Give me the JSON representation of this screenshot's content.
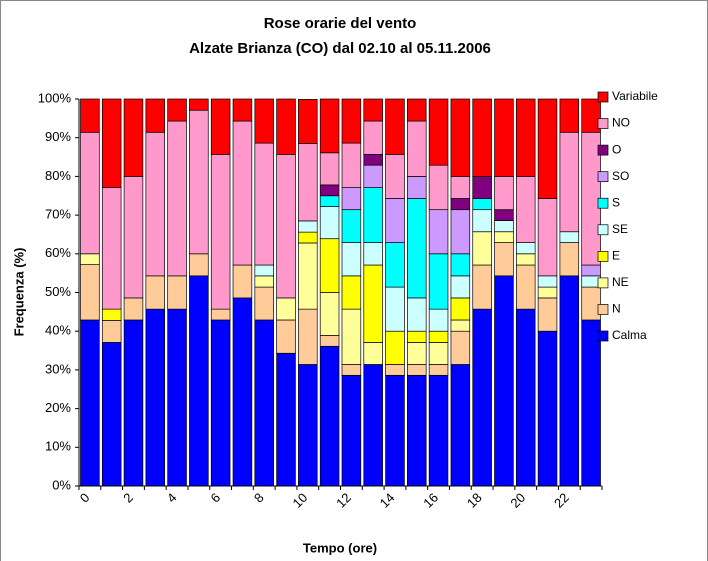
{
  "chart_data": {
    "type": "stacked_bar_100",
    "title": "Rose orarie del vento",
    "subtitle": "Alzate Brianza (CO) dal 02.10 al 05.11.2006",
    "x_label": "Tempo (ore)",
    "y_label": "Frequenza (%)",
    "categories": [
      0,
      null,
      2,
      null,
      4,
      null,
      6,
      null,
      8,
      null,
      10,
      null,
      12,
      null,
      14,
      null,
      16,
      null,
      18,
      null,
      20,
      null,
      22,
      null
    ],
    "series": [
      {
        "name": "Calma",
        "color": "#0000ff",
        "values": [
          42.9,
          37.1,
          42.9,
          45.7,
          45.7,
          54.3,
          42.9,
          48.6,
          42.9,
          34.3,
          31.4,
          36.1,
          28.6,
          31.4,
          28.6,
          28.6,
          28.6,
          31.4,
          45.7,
          54.3,
          45.7,
          40,
          54.3,
          42.9
        ]
      },
      {
        "name": "N",
        "color": "#ffcc99",
        "values": [
          14.3,
          5.7,
          5.7,
          8.6,
          8.6,
          5.7,
          2.8,
          8.5,
          8.5,
          8.6,
          14.3,
          2.8,
          2.8,
          0,
          2.8,
          2.8,
          2.8,
          8.6,
          11.4,
          8.6,
          11.4,
          8.6,
          8.6,
          8.5
        ]
      },
      {
        "name": "NE",
        "color": "#ffff99",
        "values": [
          2.8,
          0,
          0,
          0,
          0,
          0,
          0,
          0,
          2.9,
          5.7,
          17.1,
          11.1,
          14.3,
          5.7,
          0,
          5.7,
          5.7,
          2.9,
          8.6,
          2.8,
          2.9,
          2.8,
          0,
          0
        ]
      },
      {
        "name": "E",
        "color": "#ffff00",
        "values": [
          0,
          2.9,
          0,
          0,
          0,
          0,
          0,
          0,
          0,
          0,
          2.8,
          13.9,
          8.6,
          20,
          8.6,
          2.9,
          2.9,
          5.7,
          0,
          0,
          0,
          0,
          0,
          0
        ]
      },
      {
        "name": "SE",
        "color": "#ccffff",
        "values": [
          0,
          0,
          0,
          0,
          0,
          0,
          0,
          0,
          2.8,
          0,
          2.9,
          8.3,
          8.6,
          5.8,
          11.4,
          8.6,
          5.7,
          5.7,
          5.7,
          2.9,
          2.9,
          2.9,
          2.8,
          2.9
        ]
      },
      {
        "name": "S",
        "color": "#00ffff",
        "values": [
          0,
          0,
          0,
          0,
          0,
          0,
          0,
          0,
          0,
          0,
          0,
          2.8,
          8.5,
          14.2,
          11.5,
          25.7,
          14.3,
          5.7,
          2.9,
          0,
          0,
          0,
          0,
          0
        ]
      },
      {
        "name": "SO",
        "color": "#cc99ff",
        "values": [
          0,
          0,
          0,
          0,
          0,
          0,
          0,
          0,
          0,
          0,
          0,
          0,
          5.7,
          5.8,
          11.4,
          5.7,
          11.4,
          11.4,
          0,
          0,
          0,
          0,
          0,
          2.8
        ]
      },
      {
        "name": "O",
        "color": "#800080",
        "values": [
          0,
          0,
          0,
          0,
          0,
          0,
          0,
          0,
          0,
          0,
          0,
          2.8,
          0,
          2.8,
          0,
          0,
          0,
          2.9,
          5.7,
          2.8,
          0,
          0,
          0,
          0
        ]
      },
      {
        "name": "NO",
        "color": "#ff99cc",
        "values": [
          31.4,
          31.4,
          31.4,
          37.1,
          40,
          37.1,
          40,
          37.2,
          31.5,
          37.1,
          20,
          8.3,
          11.5,
          8.6,
          11.4,
          14.3,
          11.5,
          5.7,
          0,
          8.6,
          17.1,
          20,
          25.7,
          34.3
        ]
      },
      {
        "name": "Variabile",
        "color": "#ff0000",
        "values": [
          8.6,
          22.9,
          20,
          8.6,
          5.7,
          2.9,
          14.3,
          5.7,
          11.4,
          14.3,
          11.4,
          13.9,
          11.4,
          5.7,
          14.3,
          5.7,
          17.1,
          20,
          20,
          20,
          20,
          25.7,
          8.6,
          8.6
        ]
      }
    ],
    "ylim": [
      0,
      100
    ],
    "yticks": [
      {
        "value": 0,
        "label": "0%"
      },
      {
        "value": 10,
        "label": "10%"
      },
      {
        "value": 20,
        "label": "20%"
      },
      {
        "value": 30,
        "label": "30%"
      },
      {
        "value": 40,
        "label": "40%"
      },
      {
        "value": 50,
        "label": "50%"
      },
      {
        "value": 60,
        "label": "60%"
      },
      {
        "value": 70,
        "label": "70%"
      },
      {
        "value": 80,
        "label": "80%"
      },
      {
        "value": 90,
        "label": "90%"
      },
      {
        "value": 100,
        "label": "100%"
      }
    ],
    "legend": "right"
  }
}
